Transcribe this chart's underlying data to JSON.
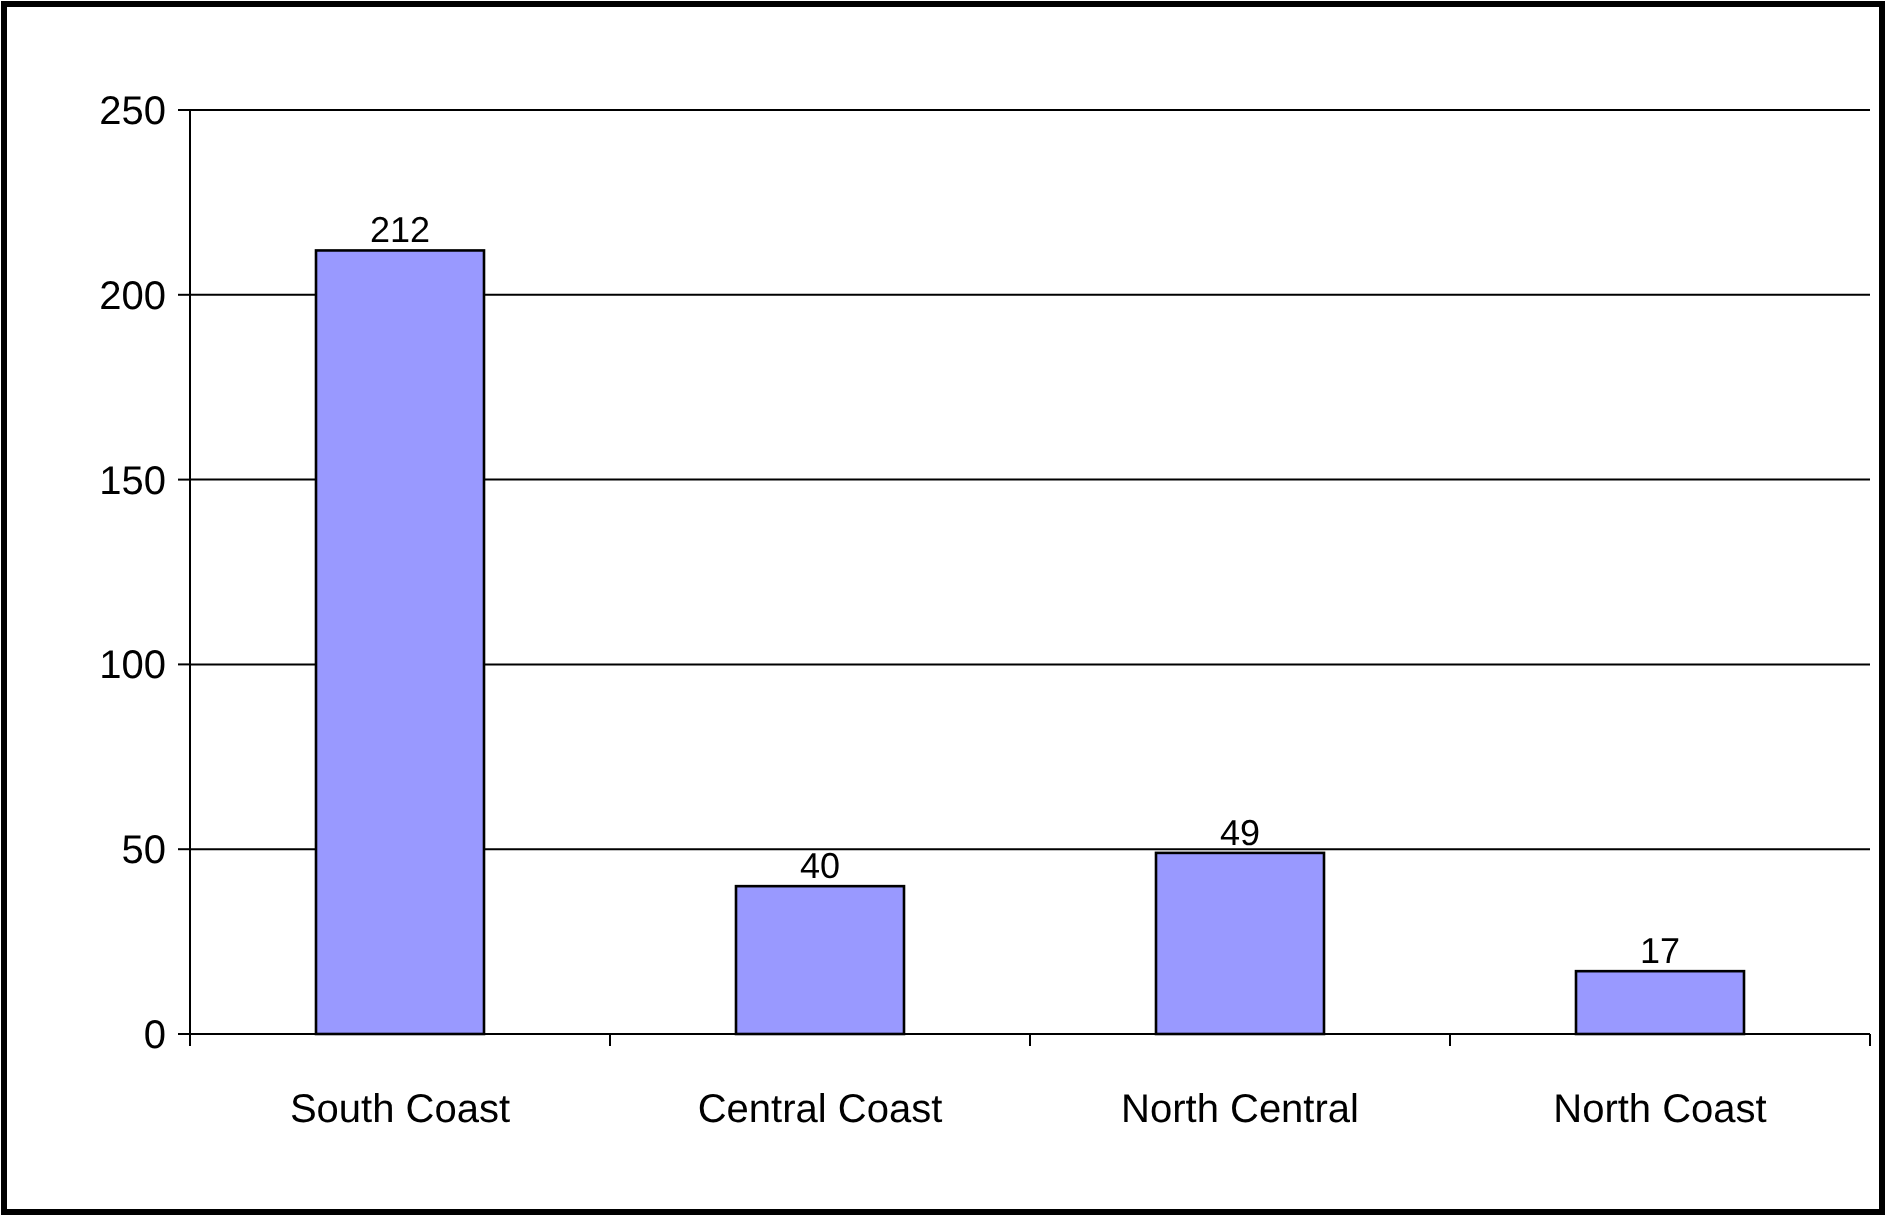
{
  "chart_data": {
    "type": "bar",
    "categories": [
      "South Coast",
      "Central Coast",
      "North Central",
      "North Coast"
    ],
    "values": [
      212,
      40,
      49,
      17
    ],
    "color": "#9999ff",
    "ylim": [
      0,
      250
    ],
    "yticks": [
      0,
      50,
      100,
      150,
      200,
      250
    ],
    "grid": "y",
    "data_labels": true
  }
}
